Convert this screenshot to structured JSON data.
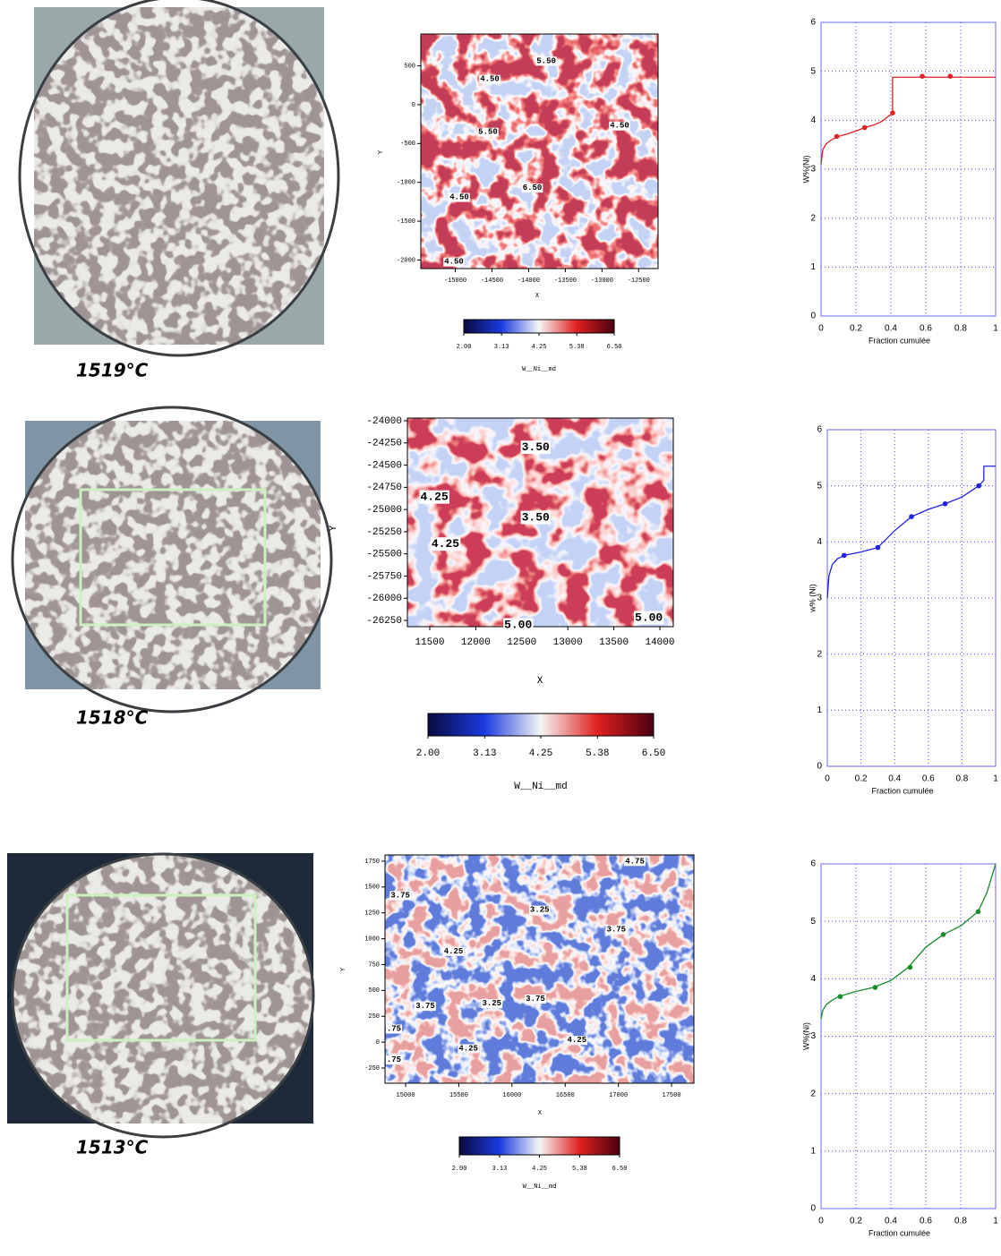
{
  "rows": [
    {
      "temperature": "1519°C"
    },
    {
      "temperature": "1518°C"
    },
    {
      "temperature": "1513°C"
    }
  ],
  "maps": [
    {
      "xlabel": "X",
      "ylabel": "Y",
      "xlim": [
        -15470,
        -12235
      ],
      "ylim": [
        -2110,
        910
      ],
      "xticks": [
        -15000,
        -14500,
        -14000,
        -13500,
        -13000,
        -12500
      ],
      "yticks": [
        500,
        0,
        -500,
        -1000,
        -1500,
        -2000
      ],
      "contour_labels": [
        {
          "x": -13760,
          "y": 565,
          "label": "5.50"
        },
        {
          "x": -14530,
          "y": 330,
          "label": "4.50"
        },
        {
          "x": -14555,
          "y": -350,
          "label": "5.50"
        },
        {
          "x": -12760,
          "y": -270,
          "label": "4.50"
        },
        {
          "x": -13950,
          "y": -1070,
          "label": "6.50"
        },
        {
          "x": -14945,
          "y": -1190,
          "label": "4.50"
        },
        {
          "x": -15018,
          "y": -2020,
          "label": "4.50"
        }
      ],
      "colorbar": {
        "label": "W__Ni__md",
        "lim": [
          2,
          6.5
        ],
        "ticks": [
          {
            "value": 2,
            "label": "2.00"
          },
          3.13,
          4.25,
          5.38,
          {
            "value": 6.5,
            "label": "6.50"
          }
        ]
      }
    },
    {
      "xlabel": "X",
      "ylabel": "Y",
      "xlim": [
        11257,
        14146
      ],
      "ylim": [
        -26320,
        -23970
      ],
      "xticks": [
        11500,
        12000,
        12500,
        13000,
        13500,
        14000
      ],
      "yticks": [
        -24000,
        -24250,
        -24500,
        -24750,
        -25000,
        -25250,
        -25500,
        -25750,
        -26000,
        -26250
      ],
      "contour_labels": [
        {
          "x": 12650,
          "y": -24300,
          "label": "3.50"
        },
        {
          "x": 11550,
          "y": -24860,
          "label": "4.25"
        },
        {
          "x": 12650,
          "y": -25090,
          "label": "3.50"
        },
        {
          "x": 11670,
          "y": -25390,
          "label": "4.25"
        },
        {
          "x": 13880,
          "y": -26220,
          "label": "5.00"
        },
        {
          "x": 12460,
          "y": -26300,
          "label": "5.00"
        }
      ],
      "colorbar": {
        "label": "W__Ni__md",
        "lim": [
          2,
          6.5
        ],
        "ticks": [
          {
            "value": 2,
            "label": "2.00"
          },
          3.13,
          4.25,
          5.38,
          {
            "value": 6.5,
            "label": "6.50"
          }
        ]
      }
    },
    {
      "xlabel": "X",
      "ylabel": "Y",
      "xlim": [
        14806,
        17710
      ],
      "ylim": [
        -397,
        1810
      ],
      "xticks": [
        15000,
        15500,
        16000,
        16500,
        17000,
        17500
      ],
      "yticks": [
        1750,
        1500,
        1250,
        1000,
        750,
        500,
        250,
        0,
        -250
      ],
      "contour_labels": [
        {
          "x": 17155,
          "y": 1750,
          "label": "4.75"
        },
        {
          "x": 14950,
          "y": 1420,
          "label": "3.75"
        },
        {
          "x": 16260,
          "y": 1280,
          "label": "3.25"
        },
        {
          "x": 16980,
          "y": 1090,
          "label": "3.75"
        },
        {
          "x": 15450,
          "y": 880,
          "label": "4.25"
        },
        {
          "x": 15185,
          "y": 350,
          "label": "3.75"
        },
        {
          "x": 15810,
          "y": 375,
          "label": "3.25"
        },
        {
          "x": 16220,
          "y": 420,
          "label": "3.75"
        },
        {
          "x": 14890,
          "y": 130,
          "label": ".75"
        },
        {
          "x": 16610,
          "y": 20,
          "label": "4.25"
        },
        {
          "x": 15590,
          "y": -60,
          "label": "4.25"
        },
        {
          "x": 14890,
          "y": -170,
          "label": ".75"
        }
      ],
      "colorbar": {
        "label": "W__Ni__md",
        "lim": [
          2,
          6.5
        ],
        "ticks": [
          {
            "value": 2,
            "label": "2.00"
          },
          3.13,
          4.25,
          5.38,
          {
            "value": 6.5,
            "label": "6.50"
          }
        ]
      }
    }
  ],
  "chart_data": [
    {
      "type": "line",
      "xlabel": "Fraction cumulée",
      "ylabel": "W%(Ni)",
      "color": "#e02020",
      "xlim": [
        0,
        1
      ],
      "ylim": [
        0,
        6
      ],
      "xticks": [
        0,
        0.2,
        0.4,
        0.6,
        0.8,
        1
      ],
      "yticks": [
        0,
        1,
        2,
        3,
        4,
        5,
        6
      ],
      "grid": true,
      "x": [
        0,
        0.01,
        0.03,
        0.06,
        0.09,
        0.15,
        0.2,
        0.25,
        0.3,
        0.35,
        0.41,
        0.41,
        0.6,
        1
      ],
      "values": [
        3.1,
        3.4,
        3.52,
        3.6,
        3.66,
        3.72,
        3.78,
        3.85,
        3.9,
        3.98,
        4.15,
        4.88,
        4.88,
        4.88
      ],
      "markers": {
        "x": [
          0.09,
          0.25,
          0.41,
          0.58,
          0.74
        ],
        "values": [
          3.67,
          3.85,
          4.15,
          4.9,
          4.9
        ]
      }
    },
    {
      "type": "line",
      "xlabel": "Fraction cumulée",
      "ylabel": "w% (Ni)",
      "color": "#2020e0",
      "xlim": [
        0,
        1
      ],
      "ylim": [
        0,
        6
      ],
      "xticks": [
        0,
        0.2,
        0.4,
        0.6,
        0.8,
        1
      ],
      "yticks": [
        0,
        1,
        2,
        3,
        4,
        5,
        6
      ],
      "grid": true,
      "x": [
        0,
        0.01,
        0.03,
        0.06,
        0.1,
        0.2,
        0.3,
        0.4,
        0.5,
        0.6,
        0.7,
        0.8,
        0.9,
        0.93,
        0.93,
        1
      ],
      "values": [
        3.0,
        3.4,
        3.6,
        3.7,
        3.76,
        3.82,
        3.9,
        4.2,
        4.45,
        4.58,
        4.68,
        4.8,
        5.0,
        5.1,
        5.35,
        5.35
      ],
      "markers": {
        "x": [
          0.1,
          0.3,
          0.5,
          0.7,
          0.9
        ],
        "values": [
          3.76,
          3.9,
          4.45,
          4.68,
          5.0
        ]
      }
    },
    {
      "type": "line",
      "xlabel": "Fraction cumulée",
      "ylabel": "W%(Ni)",
      "color": "#1e8a2e",
      "xlim": [
        0,
        1
      ],
      "ylim": [
        0,
        6
      ],
      "xticks": [
        0,
        0.2,
        0.4,
        0.6,
        0.8,
        1
      ],
      "yticks": [
        0,
        1,
        2,
        3,
        4,
        5,
        6
      ],
      "grid": true,
      "x": [
        0,
        0.01,
        0.03,
        0.06,
        0.1,
        0.2,
        0.3,
        0.4,
        0.5,
        0.6,
        0.7,
        0.8,
        0.9,
        0.95,
        1
      ],
      "values": [
        3.3,
        3.45,
        3.55,
        3.62,
        3.69,
        3.78,
        3.85,
        3.97,
        4.2,
        4.55,
        4.77,
        4.92,
        5.17,
        5.5,
        6.0
      ],
      "markers": {
        "x": [
          0.11,
          0.31,
          0.51,
          0.7,
          0.9
        ],
        "values": [
          3.69,
          3.85,
          4.2,
          4.77,
          5.17
        ]
      }
    }
  ]
}
